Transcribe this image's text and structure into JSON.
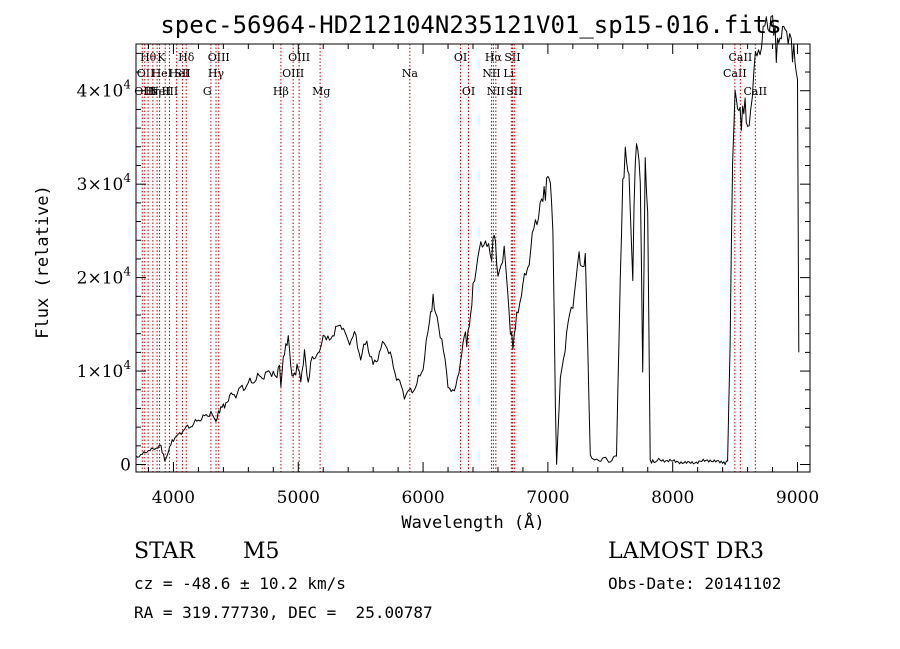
{
  "chart_data": {
    "type": "line",
    "title": "spec-56964-HD212104N235121V01_sp15-016.fits",
    "xlabel": "Wavelength (Å)",
    "ylabel": "Flux (relative)",
    "xlim": [
      3700,
      9100
    ],
    "ylim": [
      -800,
      45000
    ],
    "grid": false,
    "xticks": [
      {
        "value": 4000,
        "label": "4000"
      },
      {
        "value": 5000,
        "label": "5000"
      },
      {
        "value": 6000,
        "label": "6000"
      },
      {
        "value": 7000,
        "label": "7000"
      },
      {
        "value": 8000,
        "label": "8000"
      },
      {
        "value": 9000,
        "label": "9000"
      }
    ],
    "yticks": [
      {
        "value": 0,
        "mantissa": "0",
        "exponent": ""
      },
      {
        "value": 10000,
        "mantissa": "1×10",
        "exponent": "4"
      },
      {
        "value": 20000,
        "mantissa": "2×10",
        "exponent": "4"
      },
      {
        "value": 30000,
        "mantissa": "3×10",
        "exponent": "4"
      },
      {
        "value": 40000,
        "mantissa": "4×10",
        "exponent": "4"
      }
    ],
    "series": [
      {
        "name": "flux",
        "x": [
          3700,
          3750,
          3800,
          3850,
          3900,
          3930,
          3950,
          3970,
          4000,
          4050,
          4100,
          4150,
          4200,
          4250,
          4300,
          4340,
          4350,
          4380,
          4420,
          4450,
          4500,
          4550,
          4600,
          4650,
          4700,
          4750,
          4800,
          4830,
          4850,
          4861,
          4880,
          4900,
          4920,
          4950,
          4980,
          5000,
          5020,
          5050,
          5080,
          5100,
          5150,
          5180,
          5200,
          5250,
          5300,
          5350,
          5400,
          5450,
          5500,
          5550,
          5600,
          5650,
          5700,
          5750,
          5800,
          5850,
          5900,
          5950,
          6000,
          6050,
          6080,
          6100,
          6150,
          6200,
          6250,
          6300,
          6330,
          6350,
          6380,
          6400,
          6450,
          6500,
          6550,
          6570,
          6600,
          6650,
          6700,
          6720,
          6750,
          6800,
          6850,
          6900,
          6950,
          6980,
          7000,
          7020,
          7040,
          7050,
          7060,
          7070,
          7100,
          7150,
          7200,
          7250,
          7280,
          7300,
          7320,
          7340,
          7400,
          7450,
          7500,
          7550,
          7580,
          7600,
          7620,
          7650,
          7680,
          7700,
          7720,
          7740,
          7760,
          7780,
          7800,
          7820,
          7840,
          7900,
          8000,
          8100,
          8200,
          8300,
          8400,
          8420,
          8440,
          8460,
          8480,
          8500,
          8520,
          8550,
          8580,
          8600,
          8650,
          8700,
          8750,
          8800,
          8830,
          8860,
          8900,
          8950,
          8980,
          9000,
          9010
        ],
        "y": [
          800,
          1100,
          1500,
          1700,
          2000,
          400,
          900,
          2000,
          2700,
          3300,
          3900,
          4200,
          4800,
          5100,
          5600,
          4600,
          5200,
          6000,
          6500,
          7200,
          7600,
          8200,
          8600,
          9100,
          9400,
          9700,
          10000,
          9200,
          11000,
          8300,
          11500,
          12500,
          13500,
          9500,
          9800,
          10500,
          9000,
          12000,
          8500,
          11000,
          11800,
          12500,
          14000,
          13200,
          14500,
          15000,
          13000,
          14000,
          11500,
          13200,
          10500,
          12000,
          13200,
          11000,
          9000,
          7500,
          7800,
          8500,
          10500,
          15000,
          18000,
          16000,
          13500,
          8500,
          7600,
          11000,
          14000,
          13000,
          16000,
          19000,
          23000,
          24000,
          22000,
          25000,
          20000,
          23000,
          14500,
          12500,
          16000,
          19000,
          22000,
          26000,
          28000,
          29500,
          31000,
          30000,
          25000,
          17000,
          6000,
          200,
          9000,
          14000,
          17500,
          22000,
          21000,
          22500,
          12000,
          800,
          400,
          700,
          300,
          1000,
          20000,
          30000,
          33000,
          31000,
          20000,
          33000,
          34000,
          31000,
          10000,
          32000,
          27000,
          400,
          300,
          500,
          300,
          200,
          300,
          400,
          200,
          200,
          400,
          13000,
          33000,
          40000,
          38000,
          37000,
          39000,
          35000,
          42000,
          45000,
          47000,
          48000,
          44000,
          46000,
          47000,
          45000,
          43000,
          41000,
          12000
        ]
      }
    ],
    "line_markers": [
      {
        "wavelength": 3750,
        "row": 3,
        "label": "OIII",
        "align": "start"
      },
      {
        "wavelength": 3770,
        "row": 2,
        "label": "OII",
        "align": "start"
      },
      {
        "wavelength": 3797,
        "row": 1,
        "label": "Hθ",
        "align": "start"
      },
      {
        "wavelength": 3835,
        "row": 3,
        "label": "Hη",
        "align": "start"
      },
      {
        "wavelength": 3869,
        "row": 3,
        "label": "NeIII",
        "align": "start"
      },
      {
        "wavelength": 3889,
        "row": 2,
        "label": "HeI",
        "align": "start"
      },
      {
        "wavelength": 3934,
        "row": 1,
        "label": "K",
        "align": "start"
      },
      {
        "wavelength": 3968,
        "row": 3,
        "label": "H",
        "align": "start"
      },
      {
        "wavelength": 4026,
        "row": 2,
        "label": "HeI",
        "align": "start"
      },
      {
        "wavelength": 4072,
        "row": 2,
        "label": "SII",
        "align": "start"
      },
      {
        "wavelength": 4102,
        "row": 1,
        "label": "Hδ",
        "align": "start"
      },
      {
        "wavelength": 4300,
        "row": 3,
        "label": "G",
        "align": "start"
      },
      {
        "wavelength": 4341,
        "row": 2,
        "label": "Hγ",
        "align": "middle"
      },
      {
        "wavelength": 4363,
        "row": 1,
        "label": "OIII",
        "align": "middle"
      },
      {
        "wavelength": 4861,
        "row": 3,
        "label": "Hβ",
        "align": "start"
      },
      {
        "wavelength": 4959,
        "row": 2,
        "label": "OIII",
        "align": "middle"
      },
      {
        "wavelength": 5007,
        "row": 1,
        "label": "OIII",
        "align": "middle"
      },
      {
        "wavelength": 5175,
        "row": 3,
        "label": "Mg",
        "align": "start"
      },
      {
        "wavelength": 5894,
        "row": 2,
        "label": "Na",
        "align": "middle"
      },
      {
        "wavelength": 6300,
        "row": 1,
        "label": "OI",
        "align": "middle"
      },
      {
        "wavelength": 6364,
        "row": 3,
        "label": "OI",
        "align": "middle"
      },
      {
        "wavelength": 6548,
        "row": 2,
        "label": "NII",
        "align": "middle"
      },
      {
        "wavelength": 6563,
        "row": 1,
        "label": "Hα",
        "align": "middle"
      },
      {
        "wavelength": 6583,
        "row": 3,
        "label": "NII",
        "align": "middle"
      },
      {
        "wavelength": 6707,
        "row": 2,
        "label": "Li",
        "align": "start"
      },
      {
        "wavelength": 6716,
        "row": 1,
        "label": "SII",
        "align": "middle"
      },
      {
        "wavelength": 6731,
        "row": 3,
        "label": "SII",
        "align": "middle"
      },
      {
        "wavelength": 8498,
        "row": 2,
        "label": "CaII",
        "align": "middle"
      },
      {
        "wavelength": 8542,
        "row": 1,
        "label": "CaII",
        "align": "middle"
      },
      {
        "wavelength": 8662,
        "row": 3,
        "label": "CaII",
        "align": "middle"
      }
    ]
  },
  "info": {
    "class_label": "STAR",
    "subclass": "M5",
    "survey": "LAMOST DR3",
    "cz": "cz = -48.6 ± 10.2 km/s",
    "obs_date": "Obs-Date: 20141102",
    "coords": "RA = 319.77730, DEC =  25.00787"
  },
  "colors": {
    "marker": "#c00000",
    "spectrum": "#000000"
  }
}
